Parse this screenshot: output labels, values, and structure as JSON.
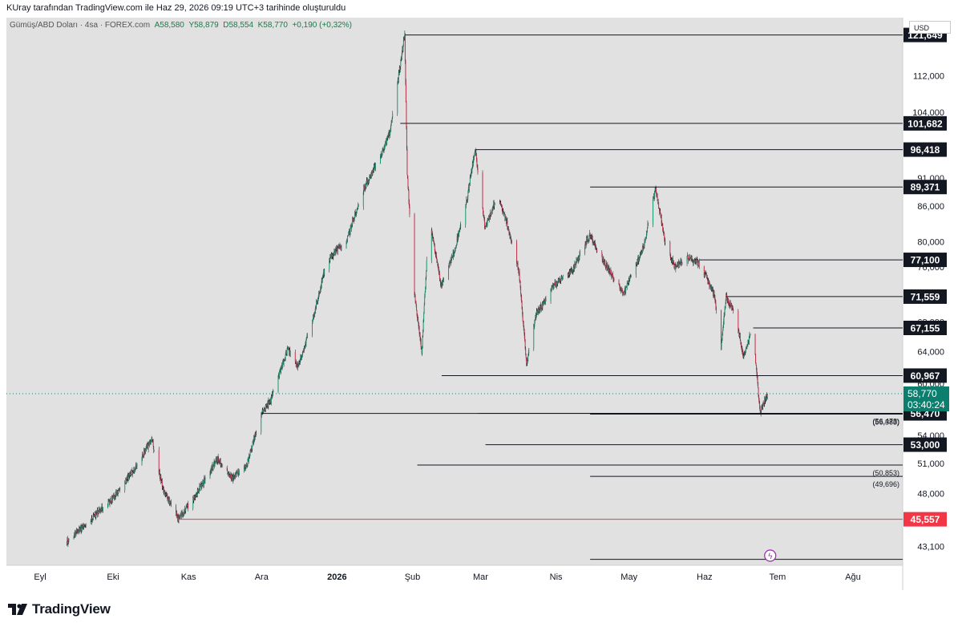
{
  "header": {
    "attribution": "KUray tarafından TradingView.com ile Haz 29, 2026 09:19 UTC+3 tarihinde oluşturuldu"
  },
  "legend": {
    "symbol": "Gümüş/ABD Doları · 4sa · FOREX.com",
    "open": "A58,580",
    "high": "Y58,879",
    "low": "D58,554",
    "close": "K58,770",
    "change": "+0,190 (+0,32%)"
  },
  "currency": "USD",
  "footer": {
    "brand": "TradingView"
  },
  "colors": {
    "up": "#1a9870",
    "down": "#c2334b",
    "support_red": "#f23645",
    "label_bg": "#131722",
    "price_bg": "#0c7e6e",
    "plot_bg": "#e1e1e1"
  },
  "chart_data": {
    "type": "candlestick",
    "y_scale": "log",
    "ylim": [
      41500,
      126000
    ],
    "y_ticks": [
      {
        "v": 112000,
        "label": "112,000"
      },
      {
        "v": 104000,
        "label": "104,000"
      },
      {
        "v": 91000,
        "label": "91,000"
      },
      {
        "v": 86000,
        "label": "86,000"
      },
      {
        "v": 80000,
        "label": "80,000"
      },
      {
        "v": 76000,
        "label": "76,000"
      },
      {
        "v": 68000,
        "label": "68,000"
      },
      {
        "v": 64000,
        "label": "64,000"
      },
      {
        "v": 60000,
        "label": "60,000"
      },
      {
        "v": 54000,
        "label": "54,000"
      },
      {
        "v": 51000,
        "label": "51,000"
      },
      {
        "v": 48000,
        "label": "48,000"
      },
      {
        "v": 43100,
        "label": "43,100"
      }
    ],
    "x_labels": [
      {
        "label": "Eyl",
        "bold": false
      },
      {
        "label": "Eki",
        "bold": false
      },
      {
        "label": "Kas",
        "bold": false
      },
      {
        "label": "Ara",
        "bold": false
      },
      {
        "label": "2026",
        "bold": true
      },
      {
        "label": "Şub",
        "bold": false
      },
      {
        "label": "Mar",
        "bold": false
      },
      {
        "label": "Nis",
        "bold": false
      },
      {
        "label": "May",
        "bold": false
      },
      {
        "label": "Haz",
        "bold": false
      },
      {
        "label": "Tem",
        "bold": false
      },
      {
        "label": "Ağu",
        "bold": false
      }
    ],
    "levels": [
      {
        "value": 121649,
        "label": "121,649",
        "start": "2026-01-29"
      },
      {
        "value": 101682,
        "label": "101,682",
        "start": "2026-01-27"
      },
      {
        "value": 96418,
        "label": "96,418",
        "start": "2026-02-27"
      },
      {
        "value": 89371,
        "label": "89,371",
        "start": "2026-04-15"
      },
      {
        "value": 77100,
        "label": "77,100",
        "start": "2026-05-30"
      },
      {
        "value": 71559,
        "label": "71,559",
        "start": "2026-06-10"
      },
      {
        "value": 67155,
        "label": "67,155",
        "start": "2026-06-21"
      },
      {
        "value": 60967,
        "label": "60,967",
        "start": "2026-02-13"
      },
      {
        "value": 56470,
        "label": "56,470",
        "start": "2025-12-01"
      },
      {
        "value": 53000,
        "label": "53,000",
        "start": "2026-03-03"
      },
      {
        "value": 45557,
        "label": "45,557",
        "start": "2025-10-28",
        "color": "red"
      }
    ],
    "small_levels": [
      {
        "value": 56383,
        "label": "(56,383)",
        "start": "2026-04-15"
      },
      {
        "value": 56478,
        "label": "(56,478)",
        "start": "2026-02-28"
      },
      {
        "value": 50853,
        "label": "(50,853)",
        "start": "2026-02-03"
      },
      {
        "value": 49696,
        "label": "(49,696)",
        "start": "2026-04-15"
      },
      {
        "value": 42000,
        "label": "",
        "start": "2026-04-15"
      }
    ],
    "current": {
      "value": 58770,
      "label": "58,770",
      "countdown": "03:40:24"
    },
    "events": [
      {
        "date": "2026-06-27",
        "label": "ϟ"
      }
    ],
    "anchors": [
      {
        "date": "2025-09-01",
        "price": 40000
      },
      {
        "date": "2025-09-12",
        "price": 43500
      },
      {
        "date": "2025-10-01",
        "price": 47500
      },
      {
        "date": "2025-10-10",
        "price": 50500
      },
      {
        "date": "2025-10-17",
        "price": 53500
      },
      {
        "date": "2025-10-22",
        "price": 48200
      },
      {
        "date": "2025-10-28",
        "price": 45600
      },
      {
        "date": "2025-11-04",
        "price": 47800
      },
      {
        "date": "2025-11-13",
        "price": 51500
      },
      {
        "date": "2025-11-19",
        "price": 49500
      },
      {
        "date": "2025-11-25",
        "price": 50800
      },
      {
        "date": "2025-12-01",
        "price": 56500
      },
      {
        "date": "2025-12-05",
        "price": 58000
      },
      {
        "date": "2025-12-12",
        "price": 64500
      },
      {
        "date": "2025-12-16",
        "price": 62000
      },
      {
        "date": "2025-12-22",
        "price": 68000
      },
      {
        "date": "2025-12-28",
        "price": 77000
      },
      {
        "date": "2026-01-05",
        "price": 80000
      },
      {
        "date": "2026-01-12",
        "price": 89000
      },
      {
        "date": "2026-01-19",
        "price": 95000
      },
      {
        "date": "2026-01-23",
        "price": 100000
      },
      {
        "date": "2026-01-29",
        "price": 121600
      },
      {
        "date": "2026-01-30",
        "price": 92000
      },
      {
        "date": "2026-02-02",
        "price": 72000
      },
      {
        "date": "2026-02-05",
        "price": 64000
      },
      {
        "date": "2026-02-08",
        "price": 84000
      },
      {
        "date": "2026-02-13",
        "price": 73000
      },
      {
        "date": "2026-02-18",
        "price": 78000
      },
      {
        "date": "2026-02-23",
        "price": 86000
      },
      {
        "date": "2026-02-27",
        "price": 96400
      },
      {
        "date": "2026-03-03",
        "price": 82000
      },
      {
        "date": "2026-03-08",
        "price": 88000
      },
      {
        "date": "2026-03-12",
        "price": 83000
      },
      {
        "date": "2026-03-17",
        "price": 75000
      },
      {
        "date": "2026-03-20",
        "price": 62500
      },
      {
        "date": "2026-03-24",
        "price": 69000
      },
      {
        "date": "2026-04-01",
        "price": 73500
      },
      {
        "date": "2026-04-07",
        "price": 75000
      },
      {
        "date": "2026-04-15",
        "price": 81000
      },
      {
        "date": "2026-04-22",
        "price": 76000
      },
      {
        "date": "2026-04-29",
        "price": 72000
      },
      {
        "date": "2026-05-07",
        "price": 79000
      },
      {
        "date": "2026-05-12",
        "price": 89000
      },
      {
        "date": "2026-05-16",
        "price": 80000
      },
      {
        "date": "2026-05-20",
        "price": 76000
      },
      {
        "date": "2026-05-25",
        "price": 77500
      },
      {
        "date": "2026-05-30",
        "price": 76500
      },
      {
        "date": "2026-06-05",
        "price": 72000
      },
      {
        "date": "2026-06-08",
        "price": 64500
      },
      {
        "date": "2026-06-10",
        "price": 71500
      },
      {
        "date": "2026-06-14",
        "price": 69000
      },
      {
        "date": "2026-06-17",
        "price": 63500
      },
      {
        "date": "2026-06-21",
        "price": 67000
      },
      {
        "date": "2026-06-24",
        "price": 56500
      },
      {
        "date": "2026-06-27",
        "price": 58800
      }
    ]
  }
}
